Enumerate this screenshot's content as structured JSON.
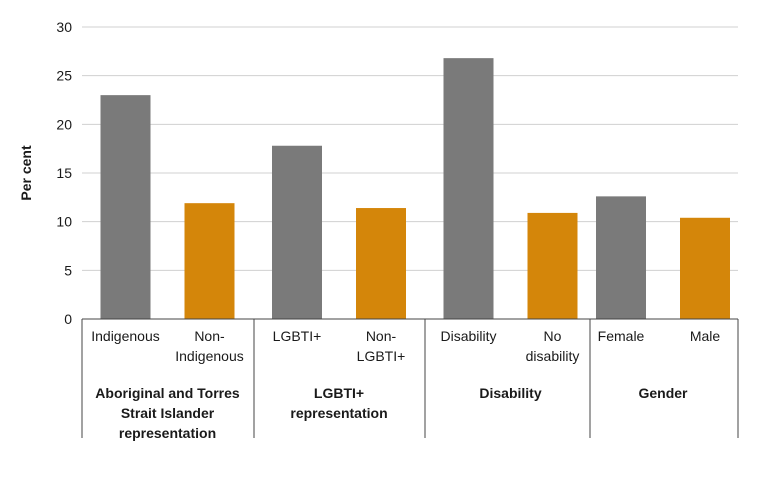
{
  "chart_data": {
    "type": "bar",
    "title": "",
    "xlabel": "",
    "ylabel": "Per cent",
    "ylim": [
      0,
      30
    ],
    "yticks": [
      0,
      5,
      10,
      15,
      20,
      25,
      30
    ],
    "grid": true,
    "colors": {
      "group_a": "#7a7a7a",
      "group_b": "#d4860a",
      "grid": "#d0d0d0",
      "axis": "#444444"
    },
    "groups": [
      {
        "name": "Aboriginal and Torres Strait Islander representation",
        "name_lines": [
          "Aboriginal and Torres",
          "Strait Islander",
          "representation"
        ],
        "bars": [
          {
            "label_lines": [
              "Indigenous"
            ],
            "value": 23.0,
            "series": "group_a"
          },
          {
            "label_lines": [
              "Non-",
              "Indigenous"
            ],
            "value": 11.9,
            "series": "group_b"
          }
        ]
      },
      {
        "name": "LGBTI+ representation",
        "name_lines": [
          "LGBTI+",
          "representation"
        ],
        "bars": [
          {
            "label_lines": [
              "LGBTI+"
            ],
            "value": 17.8,
            "series": "group_a"
          },
          {
            "label_lines": [
              "Non-",
              "LGBTI+"
            ],
            "value": 11.4,
            "series": "group_b"
          }
        ]
      },
      {
        "name": "Disability",
        "name_lines": [
          "Disability"
        ],
        "bars": [
          {
            "label_lines": [
              "Disability"
            ],
            "value": 26.8,
            "series": "group_a"
          },
          {
            "label_lines": [
              "No",
              "disability"
            ],
            "value": 10.9,
            "series": "group_b"
          }
        ]
      },
      {
        "name": "Gender",
        "name_lines": [
          "Gender"
        ],
        "bars": [
          {
            "label_lines": [
              "Female"
            ],
            "value": 12.6,
            "series": "group_a"
          },
          {
            "label_lines": [
              "Male"
            ],
            "value": 10.4,
            "series": "group_b"
          }
        ]
      }
    ]
  }
}
